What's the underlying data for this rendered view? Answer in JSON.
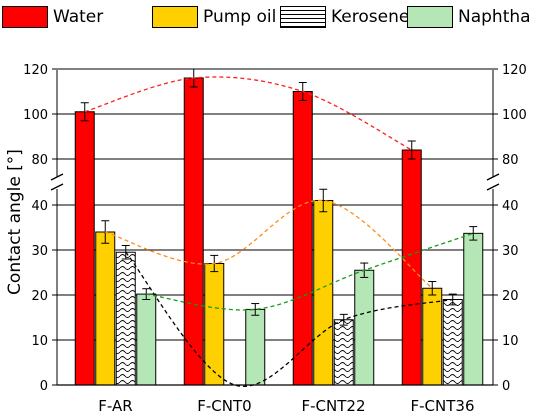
{
  "chart_data": {
    "type": "bar",
    "categories": [
      "F-AR",
      "F-CNT0",
      "F-CNT22",
      "F-CNT36"
    ],
    "series": [
      {
        "name": "Water",
        "color": "#ff0000",
        "pattern": "solid",
        "values": [
          101,
          116,
          110,
          84
        ],
        "errors": [
          4,
          4,
          4,
          4
        ]
      },
      {
        "name": "Pump oil",
        "color": "#ffd000",
        "pattern": "solid",
        "values": [
          34,
          27,
          41,
          21.5
        ],
        "errors": [
          2.5,
          1.8,
          2.5,
          1.5
        ]
      },
      {
        "name": "Kerosene",
        "color": "#ffffff",
        "pattern": "waves",
        "values": [
          29.5,
          0,
          14.5,
          19
        ],
        "errors": [
          1.5,
          0,
          1.2,
          1.2
        ]
      },
      {
        "name": "Naphtha",
        "color": "#b5e6b5",
        "pattern": "solid",
        "values": [
          20.2,
          16.8,
          25.5,
          33.7
        ],
        "errors": [
          1.2,
          1.3,
          1.6,
          1.5
        ]
      }
    ],
    "ylabel": "Contact angle [°]",
    "xlabel": "",
    "ylim": [
      0,
      120
    ],
    "axis_break": [
      45,
      75
    ],
    "yticks": [
      0,
      10,
      20,
      30,
      40,
      80,
      100,
      120
    ],
    "grid": true,
    "legend_position": "top",
    "trend_lines": "dashed, one per series"
  }
}
